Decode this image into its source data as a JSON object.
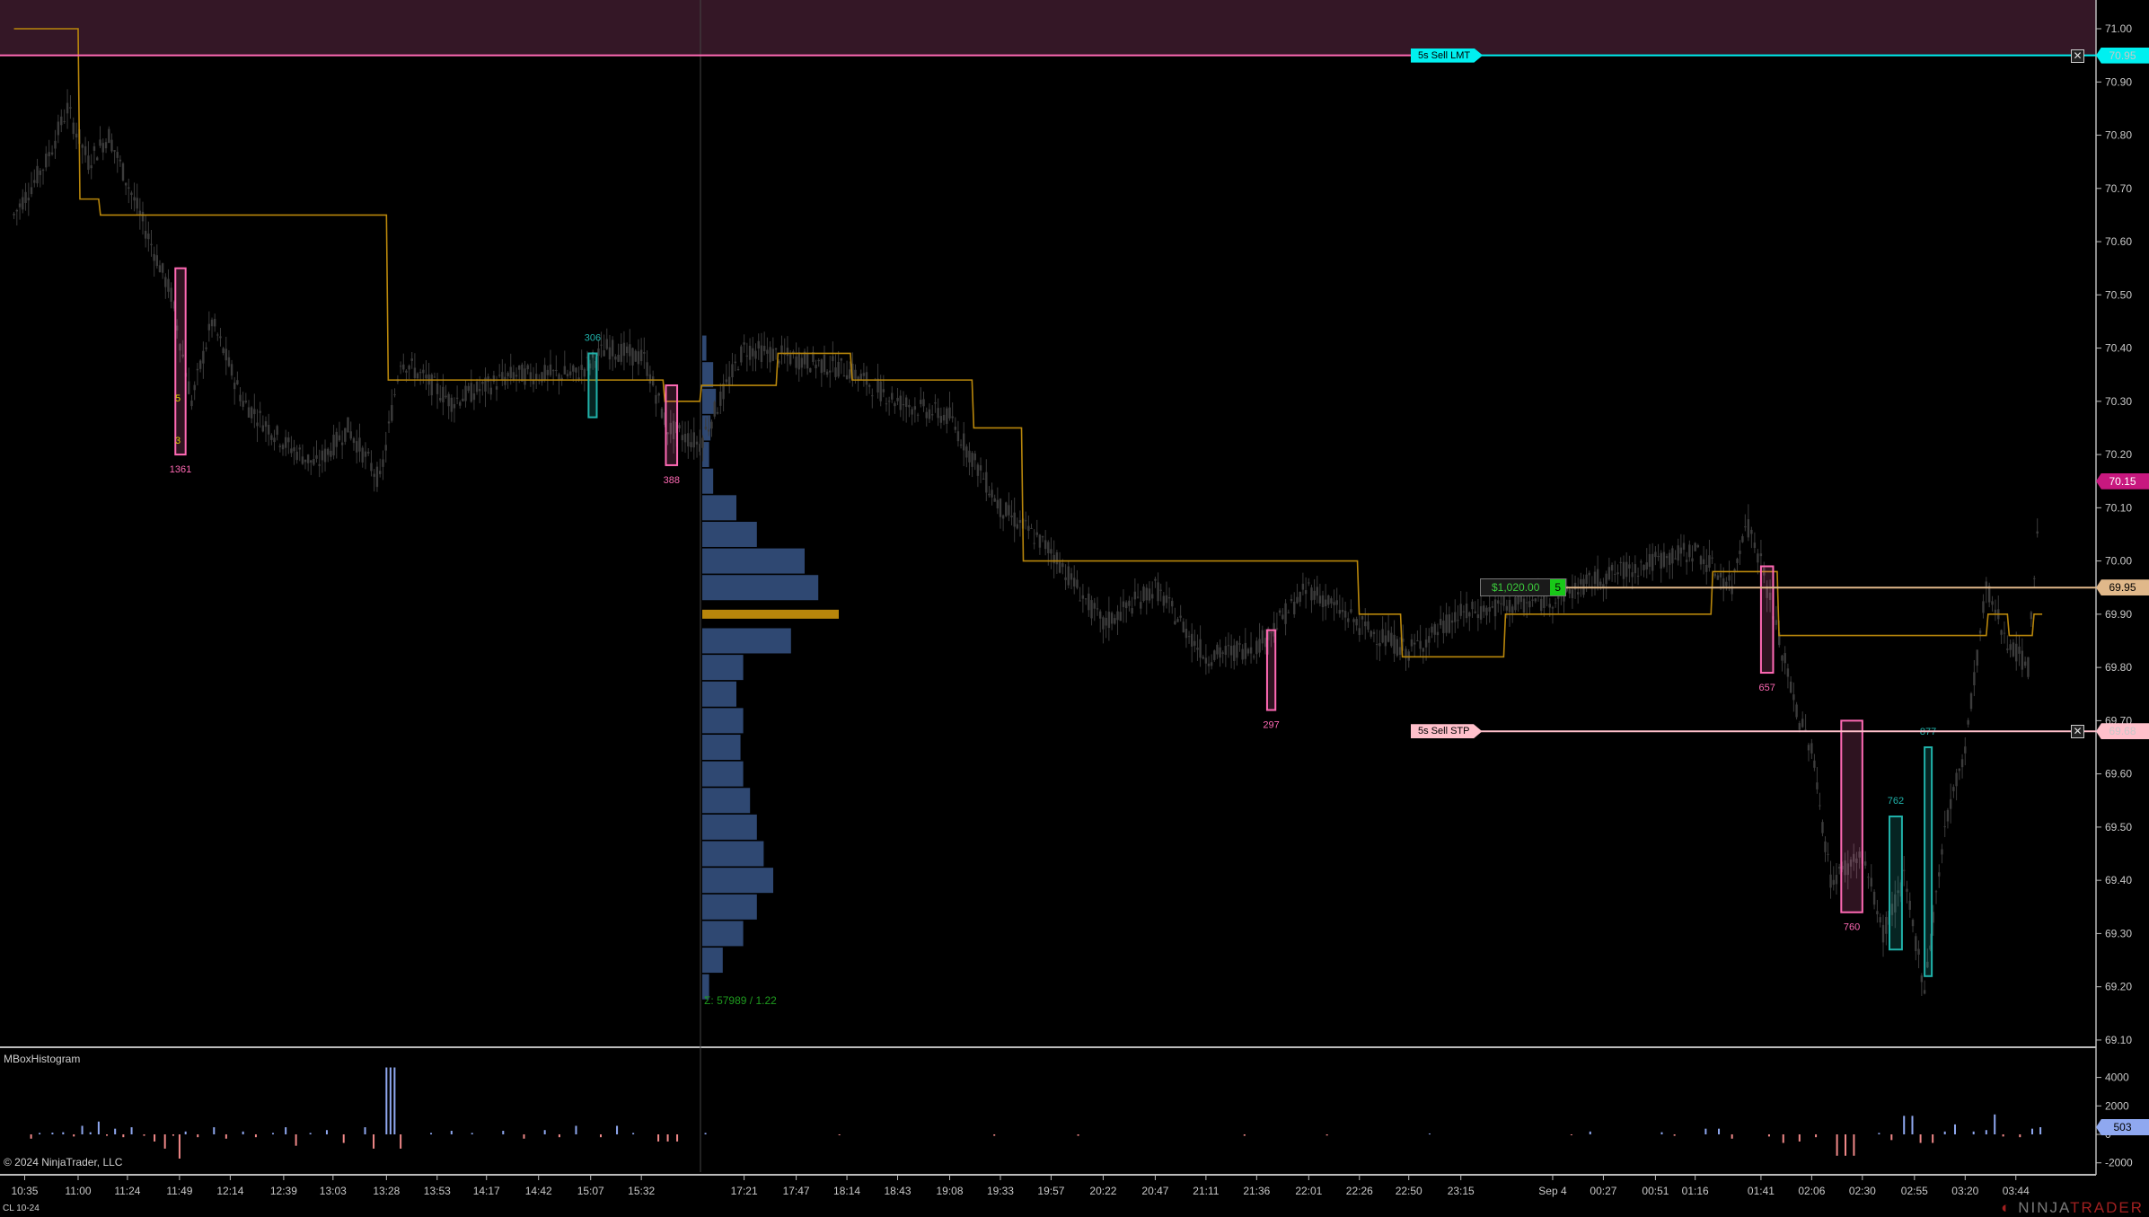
{
  "instrument": "CL 10-24",
  "copyright": "© 2024 NinjaTrader, LLC",
  "logo_text": "NINJATRADER",
  "histogram_panel": {
    "title": "MBoxHistogram"
  },
  "orders": [
    {
      "label": "5s  Sell LMT",
      "price": 70.95,
      "price_label": "70.95",
      "color": "#00f0f0",
      "close": "✕"
    },
    {
      "label": "5s  Sell STP",
      "price": 69.68,
      "price_label": "69.68",
      "color": "#ffc0cb",
      "close": "✕"
    }
  ],
  "position": {
    "pnl": "$1,020.00",
    "qty": "5",
    "price": 69.95,
    "price_label": "69.95",
    "color": "#e0b88a"
  },
  "last_price": {
    "price": 70.15,
    "label": "70.15",
    "color": "#c8187f"
  },
  "histogram_last": {
    "value": 503,
    "label": "503",
    "color": "#8fa8f0"
  },
  "volume_profile_label": "Σ: 57989 / 1.22",
  "colors": {
    "background": "#000000",
    "candle": "#3c3c3c",
    "step_line": "#b8860b",
    "zone": "#341726",
    "zone_border": "#ff69b4",
    "profile": "#34507e",
    "poc": "#b8860b",
    "box_pink": "#ff69b4",
    "box_cyan": "#20b2aa",
    "hist_pos": "#8fa8f0",
    "hist_neg": "#f08888",
    "axis_text": "#c8c8c8"
  },
  "chart_data": [
    {
      "type": "candlestick",
      "title": "",
      "y_axis": {
        "range": [
          69.1,
          71.0
        ],
        "ticks": [
          "71.00",
          "70.90",
          "70.80",
          "70.70",
          "70.60",
          "70.50",
          "70.40",
          "70.30",
          "70.20",
          "70.10",
          "70.00",
          "69.90",
          "69.80",
          "69.70",
          "69.60",
          "69.50",
          "69.40",
          "69.30",
          "69.20",
          "69.10"
        ]
      },
      "x_axis": {
        "ticks": [
          "10:35",
          "11:00",
          "11:24",
          "11:49",
          "12:14",
          "12:39",
          "13:03",
          "13:28",
          "13:53",
          "14:17",
          "14:42",
          "15:07",
          "15:32",
          "17:21",
          "17:47",
          "18:14",
          "18:43",
          "19:08",
          "19:33",
          "19:57",
          "20:22",
          "20:47",
          "21:11",
          "21:36",
          "22:01",
          "22:26",
          "22:50",
          "23:15",
          "Sep 4",
          "00:27",
          "00:51",
          "01:16",
          "01:41",
          "02:06",
          "02:30",
          "02:55",
          "03:20",
          "03:44"
        ]
      },
      "price_path": [
        [
          "10:30",
          70.65
        ],
        [
          "10:45",
          70.75
        ],
        [
          "10:55",
          70.85
        ],
        [
          "11:05",
          70.75
        ],
        [
          "11:15",
          70.8
        ],
        [
          "11:30",
          70.65
        ],
        [
          "11:45",
          70.5
        ],
        [
          "11:55",
          70.3
        ],
        [
          "12:05",
          70.45
        ],
        [
          "12:20",
          70.3
        ],
        [
          "12:40",
          70.22
        ],
        [
          "12:55",
          70.18
        ],
        [
          "13:10",
          70.25
        ],
        [
          "13:25",
          70.15
        ],
        [
          "13:35",
          70.38
        ],
        [
          "14:00",
          70.3
        ],
        [
          "14:30",
          70.35
        ],
        [
          "15:00",
          70.35
        ],
        [
          "15:15",
          70.4
        ],
        [
          "15:35",
          70.38
        ],
        [
          "16:00",
          70.25
        ],
        [
          "16:34",
          70.22
        ],
        [
          "17:21",
          70.4
        ],
        [
          "17:47",
          70.38
        ],
        [
          "18:14",
          70.36
        ],
        [
          "18:43",
          70.3
        ],
        [
          "19:08",
          70.27
        ],
        [
          "19:33",
          70.1
        ],
        [
          "19:57",
          70.02
        ],
        [
          "20:22",
          69.88
        ],
        [
          "20:47",
          69.95
        ],
        [
          "21:11",
          69.82
        ],
        [
          "21:36",
          69.84
        ],
        [
          "22:01",
          69.95
        ],
        [
          "22:26",
          69.88
        ],
        [
          "22:50",
          69.83
        ],
        [
          "23:15",
          69.9
        ],
        [
          "00:00",
          69.93
        ],
        [
          "00:27",
          69.97
        ],
        [
          "00:51",
          70.0
        ],
        [
          "01:16",
          70.02
        ],
        [
          "01:30",
          69.95
        ],
        [
          "01:35",
          70.08
        ],
        [
          "01:41",
          70.0
        ],
        [
          "01:50",
          69.85
        ],
        [
          "02:00",
          69.7
        ],
        [
          "02:06",
          69.65
        ],
        [
          "02:15",
          69.4
        ],
        [
          "02:30",
          69.45
        ],
        [
          "02:40",
          69.3
        ],
        [
          "02:50",
          69.4
        ],
        [
          "03:00",
          69.2
        ],
        [
          "03:10",
          69.5
        ],
        [
          "03:20",
          69.65
        ],
        [
          "03:30",
          69.95
        ],
        [
          "03:40",
          69.85
        ],
        [
          "03:50",
          69.8
        ],
        [
          "03:56",
          70.15
        ]
      ],
      "step_line": [
        [
          "10:30",
          71.0
        ],
        [
          "11:00",
          70.68
        ],
        [
          "11:10",
          70.65
        ],
        [
          "13:28",
          70.34
        ],
        [
          "15:55",
          70.3
        ],
        [
          "16:34",
          70.33
        ],
        [
          "17:37",
          70.39
        ],
        [
          "18:16",
          70.34
        ],
        [
          "19:19",
          70.25
        ],
        [
          "19:43",
          70.0
        ],
        [
          "22:25",
          69.9
        ],
        [
          "22:46",
          69.82
        ],
        [
          "23:36",
          69.9
        ],
        [
          "01:22",
          69.98
        ],
        [
          "01:49",
          69.86
        ],
        [
          "03:30",
          69.9
        ],
        [
          "03:40",
          69.86
        ],
        [
          "03:52",
          69.9
        ],
        [
          "03:56",
          69.9
        ]
      ],
      "zone": {
        "from": 70.95,
        "to": 71.0
      },
      "boxes": [
        {
          "start": "11:47",
          "end": "11:52",
          "high": 70.55,
          "low": 70.2,
          "kind": "pink",
          "label": "1361",
          "label_pos": "below"
        },
        {
          "start": "15:06",
          "end": "15:10",
          "high": 70.39,
          "low": 70.27,
          "kind": "cyan",
          "label": "306",
          "label_pos": "above"
        },
        {
          "start": "15:58",
          "end": "16:10",
          "high": 70.33,
          "low": 70.18,
          "kind": "pink",
          "label": "388",
          "label_pos": "below"
        },
        {
          "start": "21:41",
          "end": "21:45",
          "high": 69.87,
          "low": 69.72,
          "kind": "pink",
          "label": "297",
          "label_pos": "below"
        },
        {
          "start": "01:41",
          "end": "01:47",
          "high": 69.99,
          "low": 69.79,
          "kind": "pink",
          "label": "657",
          "label_pos": "below"
        },
        {
          "start": "02:20",
          "end": "02:30",
          "high": 69.7,
          "low": 69.34,
          "kind": "pink",
          "label": "760",
          "label_pos": "below"
        },
        {
          "start": "02:43",
          "end": "02:49",
          "high": 69.52,
          "low": 69.27,
          "kind": "cyan",
          "label": "762",
          "label_pos": "above"
        },
        {
          "start": "03:00",
          "end": "03:02",
          "high": 69.65,
          "low": 69.22,
          "kind": "cyan",
          "label": "877",
          "label_pos": "above"
        }
      ],
      "box_side_labels": [
        {
          "text": "5",
          "price": 70.3
        },
        {
          "text": "3",
          "price": 70.22
        }
      ],
      "volume_profile": {
        "poc": 69.9,
        "levels": [
          [
            70.4,
            3
          ],
          [
            70.35,
            8
          ],
          [
            70.3,
            10
          ],
          [
            70.25,
            6
          ],
          [
            70.2,
            5
          ],
          [
            70.15,
            8
          ],
          [
            70.1,
            25
          ],
          [
            70.05,
            40
          ],
          [
            70.0,
            75
          ],
          [
            69.95,
            85
          ],
          [
            69.9,
            100
          ],
          [
            69.85,
            65
          ],
          [
            69.8,
            30
          ],
          [
            69.75,
            25
          ],
          [
            69.7,
            30
          ],
          [
            69.65,
            28
          ],
          [
            69.6,
            30
          ],
          [
            69.55,
            35
          ],
          [
            69.5,
            40
          ],
          [
            69.45,
            45
          ],
          [
            69.4,
            52
          ],
          [
            69.35,
            40
          ],
          [
            69.3,
            30
          ],
          [
            69.25,
            15
          ],
          [
            69.2,
            5
          ]
        ]
      }
    },
    {
      "type": "bar",
      "title": "MBoxHistogram",
      "y_axis": {
        "range": [
          -2500,
          4700
        ],
        "ticks": [
          "4000",
          "2000",
          "0",
          "-2000"
        ]
      },
      "values": [
        [
          "10:38",
          -300
        ],
        [
          "10:42",
          100
        ],
        [
          "10:48",
          120
        ],
        [
          "10:53",
          150
        ],
        [
          "10:58",
          -150
        ],
        [
          "11:02",
          600
        ],
        [
          "11:06",
          150
        ],
        [
          "11:10",
          900
        ],
        [
          "11:14",
          -100
        ],
        [
          "11:18",
          400
        ],
        [
          "11:22",
          -200
        ],
        [
          "11:26",
          500
        ],
        [
          "11:32",
          -100
        ],
        [
          "11:37",
          -500
        ],
        [
          "11:42",
          -1000
        ],
        [
          "11:46",
          -100
        ],
        [
          "11:49",
          -1700
        ],
        [
          "11:52",
          200
        ],
        [
          "11:58",
          -200
        ],
        [
          "12:06",
          500
        ],
        [
          "12:12",
          -300
        ],
        [
          "12:20",
          200
        ],
        [
          "12:26",
          -200
        ],
        [
          "12:34",
          100
        ],
        [
          "12:40",
          500
        ],
        [
          "12:45",
          -800
        ],
        [
          "12:52",
          100
        ],
        [
          "13:00",
          300
        ],
        [
          "13:08",
          -600
        ],
        [
          "13:18",
          500
        ],
        [
          "13:22",
          -1000
        ],
        [
          "13:28",
          4700
        ],
        [
          "13:30",
          4700
        ],
        [
          "13:32",
          4700
        ],
        [
          "13:35",
          -1000
        ],
        [
          "13:50",
          100
        ],
        [
          "14:00",
          250
        ],
        [
          "14:10",
          100
        ],
        [
          "14:25",
          250
        ],
        [
          "14:35",
          -300
        ],
        [
          "14:45",
          300
        ],
        [
          "14:52",
          -200
        ],
        [
          "15:00",
          600
        ],
        [
          "15:12",
          -200
        ],
        [
          "15:20",
          600
        ],
        [
          "15:28",
          100
        ],
        [
          "15:50",
          -500
        ],
        [
          "16:00",
          -500
        ],
        [
          "16:10",
          -500
        ],
        [
          "16:40",
          100
        ],
        [
          "18:10",
          -50
        ],
        [
          "19:30",
          -100
        ],
        [
          "20:10",
          -100
        ],
        [
          "21:30",
          -100
        ],
        [
          "22:10",
          -80
        ],
        [
          "23:00",
          60
        ],
        [
          "00:10",
          -50
        ],
        [
          "00:20",
          200
        ],
        [
          "00:55",
          150
        ],
        [
          "01:03",
          -100
        ],
        [
          "01:20",
          400
        ],
        [
          "01:25",
          400
        ],
        [
          "01:30",
          -300
        ],
        [
          "01:45",
          -150
        ],
        [
          "01:52",
          -600
        ],
        [
          "02:00",
          -500
        ],
        [
          "02:08",
          -200
        ],
        [
          "02:18",
          -1500
        ],
        [
          "02:22",
          -1500
        ],
        [
          "02:26",
          -1500
        ],
        [
          "02:38",
          100
        ],
        [
          "02:44",
          -400
        ],
        [
          "02:50",
          1300
        ],
        [
          "02:54",
          1300
        ],
        [
          "02:58",
          -600
        ],
        [
          "03:04",
          -600
        ],
        [
          "03:10",
          200
        ],
        [
          "03:15",
          700
        ],
        [
          "03:24",
          200
        ],
        [
          "03:30",
          300
        ],
        [
          "03:34",
          1400
        ],
        [
          "03:38",
          -150
        ],
        [
          "03:46",
          -200
        ],
        [
          "03:52",
          400
        ],
        [
          "03:56",
          503
        ]
      ]
    }
  ]
}
